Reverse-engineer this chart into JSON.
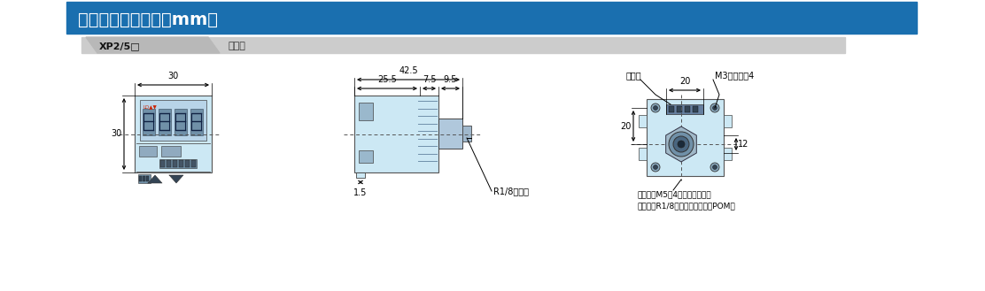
{
  "title": "外形尺寸图（单位：mm）",
  "title_bg": "#1a6faf",
  "title_text_color": "#ffffff",
  "tab_text": "XP2/5□",
  "tab_label": "传感器",
  "tab_bg": "#c8c8c8",
  "bg_color": "#ffffff",
  "drawing_bg": "#cce8f4",
  "note1": "R1/8外螺纹",
  "note2_line1": "内螺纹：M5深4（材质：黄铜）",
  "note2_line2": "外螺纹：R1/8（材质：六角赛钢POM）",
  "note3": "连接器",
  "note4": "M3内螺纹深4",
  "dim_30w": "30",
  "dim_30h": "30",
  "dim_42_5": "42.5",
  "dim_25_5": "25.5",
  "dim_7_5": "7.5",
  "dim_9_5": "9.5",
  "dim_1_5": "1.5",
  "dim_20w": "20",
  "dim_20h": "20",
  "dim_12": "12"
}
